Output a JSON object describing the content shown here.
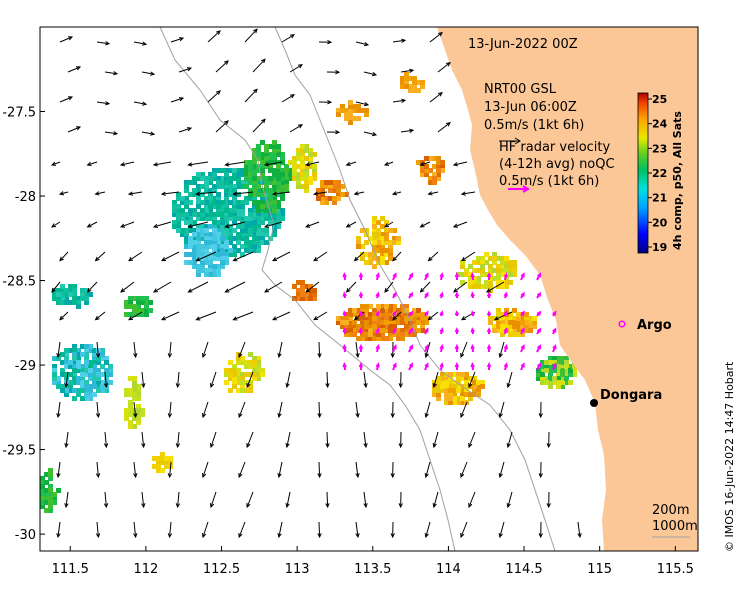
{
  "header": {
    "date_title": "13-Jun-2022 00Z"
  },
  "gsl_legend": {
    "line1": "NRT00 GSL",
    "line2": "13-Jun 06:00Z",
    "line3": "0.5m/s (1kt 6h)"
  },
  "radar_legend": {
    "line1": "HF radar velocity",
    "line2": "(4-12h avg) noQC",
    "line3": "0.5m/s (1kt 6h)"
  },
  "colorbar": {
    "title": "4h comp, p50, All Sats",
    "ticks": [
      "25",
      "24",
      "23",
      "22",
      "21",
      "20",
      "19"
    ],
    "min": 19,
    "max": 25,
    "colors": [
      "#00007f",
      "#0000ff",
      "#007fff",
      "#00ffff",
      "#7fff7f",
      "#ffff00",
      "#ff7f00",
      "#ff0000",
      "#7f0000"
    ]
  },
  "axes": {
    "x_ticks": [
      "111.5",
      "112",
      "112.5",
      "113",
      "113.5",
      "114",
      "114.5",
      "115",
      "115.5"
    ],
    "y_ticks": [
      "-27.5",
      "-28",
      "-28.5",
      "-29",
      "-29.5",
      "-30"
    ],
    "lon_range": [
      111.3,
      115.65
    ],
    "lat_range": [
      -30.1,
      -27.0
    ]
  },
  "places": {
    "argo": "Argo",
    "dongara": "Dongara"
  },
  "depth_legend": {
    "line1": "200m",
    "line2": "1000m"
  },
  "credit": "© IMOS 16-Jun-2022 14:47 Hobart",
  "colors": {
    "land": "#fbc797",
    "radar_arrow": "#ff00ff",
    "argo_marker": "#ff00ff",
    "contour": "#a0a0a0"
  }
}
